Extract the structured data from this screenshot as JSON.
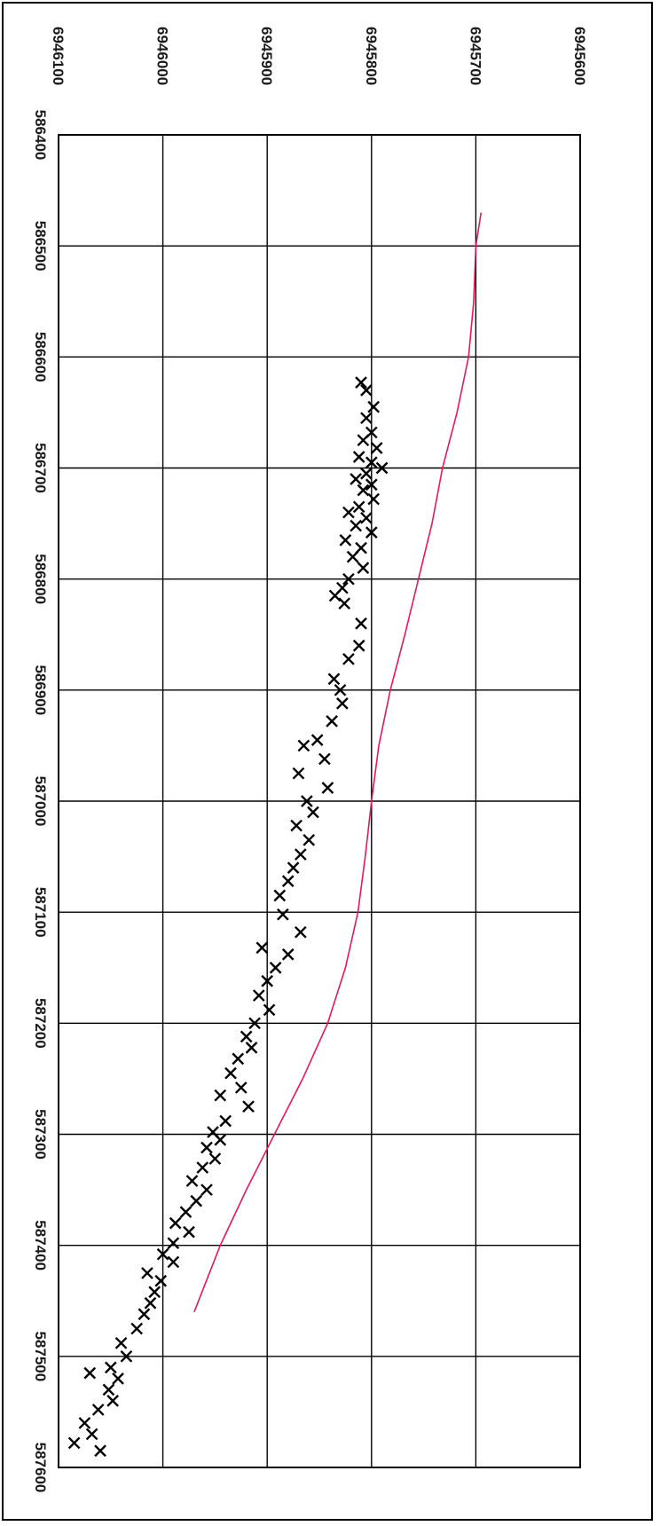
{
  "chart_data": {
    "type": "scatter",
    "orientation": "rotated-90-clockwise",
    "title": "",
    "xlabel": "",
    "ylabel": "",
    "xlim": [
      586400,
      587600
    ],
    "ylim": [
      6945600,
      6946100
    ],
    "x_ticks": [
      586400,
      586500,
      586600,
      586700,
      586800,
      586900,
      587000,
      587100,
      587200,
      587300,
      587400,
      587500,
      587600
    ],
    "y_ticks": [
      6945600,
      6945700,
      6945800,
      6945900,
      6946000,
      6946100
    ],
    "x_tick_labels": [
      "586400",
      "586500",
      "586600",
      "586700",
      "586800",
      "586900",
      "587000",
      "587100",
      "587200",
      "587300",
      "587400",
      "587500",
      "587600"
    ],
    "y_tick_labels": [
      "6945600",
      "6945700",
      "6945800",
      "6945900",
      "6946000",
      "6946100"
    ],
    "grid": true,
    "legend": "none",
    "series": [
      {
        "marker": "x",
        "color": "#000000",
        "points": [
          [
            586623,
            6945810
          ],
          [
            586630,
            6945805
          ],
          [
            586645,
            6945798
          ],
          [
            586655,
            6945805
          ],
          [
            586668,
            6945800
          ],
          [
            586675,
            6945808
          ],
          [
            586682,
            6945795
          ],
          [
            586690,
            6945812
          ],
          [
            586695,
            6945800
          ],
          [
            586700,
            6945790
          ],
          [
            586705,
            6945805
          ],
          [
            586710,
            6945815
          ],
          [
            586715,
            6945800
          ],
          [
            586720,
            6945808
          ],
          [
            586728,
            6945798
          ],
          [
            586735,
            6945812
          ],
          [
            586740,
            6945822
          ],
          [
            586745,
            6945805
          ],
          [
            586752,
            6945815
          ],
          [
            586758,
            6945800
          ],
          [
            586765,
            6945825
          ],
          [
            586772,
            6945810
          ],
          [
            586780,
            6945818
          ],
          [
            586790,
            6945808
          ],
          [
            586800,
            6945822
          ],
          [
            586808,
            6945828
          ],
          [
            586815,
            6945835
          ],
          [
            586822,
            6945826
          ],
          [
            586840,
            6945810
          ],
          [
            586860,
            6945812
          ],
          [
            586872,
            6945822
          ],
          [
            586890,
            6945836
          ],
          [
            586900,
            6945830
          ],
          [
            586912,
            6945828
          ],
          [
            586928,
            6945838
          ],
          [
            586945,
            6945852
          ],
          [
            586950,
            6945865
          ],
          [
            586962,
            6945845
          ],
          [
            586975,
            6945870
          ],
          [
            586988,
            6945842
          ],
          [
            587000,
            6945862
          ],
          [
            587010,
            6945856
          ],
          [
            587022,
            6945872
          ],
          [
            587035,
            6945860
          ],
          [
            587048,
            6945868
          ],
          [
            587060,
            6945875
          ],
          [
            587072,
            6945880
          ],
          [
            587085,
            6945888
          ],
          [
            587102,
            6945885
          ],
          [
            587118,
            6945868
          ],
          [
            587132,
            6945905
          ],
          [
            587138,
            6945880
          ],
          [
            587150,
            6945892
          ],
          [
            587162,
            6945900
          ],
          [
            587175,
            6945908
          ],
          [
            587188,
            6945898
          ],
          [
            587200,
            6945912
          ],
          [
            587212,
            6945920
          ],
          [
            587222,
            6945915
          ],
          [
            587232,
            6945928
          ],
          [
            587245,
            6945935
          ],
          [
            587258,
            6945925
          ],
          [
            587265,
            6945945
          ],
          [
            587275,
            6945918
          ],
          [
            587288,
            6945940
          ],
          [
            587298,
            6945952
          ],
          [
            587305,
            6945945
          ],
          [
            587312,
            6945958
          ],
          [
            587322,
            6945950
          ],
          [
            587330,
            6945962
          ],
          [
            587342,
            6945972
          ],
          [
            587350,
            6945958
          ],
          [
            587360,
            6945968
          ],
          [
            587370,
            6945978
          ],
          [
            587380,
            6945988
          ],
          [
            587388,
            6945975
          ],
          [
            587398,
            6945990
          ],
          [
            587408,
            6946000
          ],
          [
            587415,
            6945990
          ],
          [
            587425,
            6946015
          ],
          [
            587432,
            6946002
          ],
          [
            587442,
            6946008
          ],
          [
            587452,
            6946012
          ],
          [
            587462,
            6946018
          ],
          [
            587475,
            6946025
          ],
          [
            587488,
            6946040
          ],
          [
            587500,
            6946035
          ],
          [
            587510,
            6946050
          ],
          [
            587515,
            6946070
          ],
          [
            587520,
            6946043
          ],
          [
            587530,
            6946052
          ],
          [
            587540,
            6946048
          ],
          [
            587548,
            6946062
          ],
          [
            587560,
            6946075
          ],
          [
            587570,
            6946068
          ],
          [
            587578,
            6946085
          ],
          [
            587585,
            6946060
          ]
        ]
      },
      {
        "marker": "line",
        "color": "#e8175d",
        "points": [
          [
            586470,
            6945695
          ],
          [
            586500,
            6945700
          ],
          [
            586550,
            6945702
          ],
          [
            586600,
            6945707
          ],
          [
            586650,
            6945718
          ],
          [
            586700,
            6945732
          ],
          [
            586750,
            6945742
          ],
          [
            586800,
            6945755
          ],
          [
            586850,
            6945768
          ],
          [
            586900,
            6945782
          ],
          [
            586950,
            6945793
          ],
          [
            587000,
            6945800
          ],
          [
            587050,
            6945806
          ],
          [
            587100,
            6945813
          ],
          [
            587150,
            6945825
          ],
          [
            587200,
            6945842
          ],
          [
            587250,
            6945866
          ],
          [
            587300,
            6945893
          ],
          [
            587350,
            6945920
          ],
          [
            587400,
            6945945
          ],
          [
            587460,
            6945970
          ]
        ]
      }
    ]
  }
}
